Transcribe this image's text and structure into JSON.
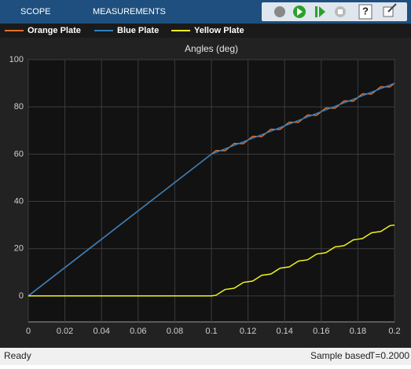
{
  "toolbar": {
    "tabs": [
      "SCOPE",
      "MEASUREMENTS"
    ],
    "help": "?"
  },
  "status_bar": {
    "state": "Ready",
    "mode": "Sample based",
    "time": "T=0.2000"
  },
  "chart_data": {
    "type": "line",
    "title": "Angles (deg)",
    "x": [
      0,
      0.05,
      0.1,
      0.1025,
      0.105,
      0.1075,
      0.11,
      0.1125,
      0.115,
      0.1175,
      0.12,
      0.1225,
      0.125,
      0.1275,
      0.13,
      0.1325,
      0.135,
      0.1375,
      0.14,
      0.1425,
      0.145,
      0.1475,
      0.15,
      0.1525,
      0.155,
      0.1575,
      0.16,
      0.1625,
      0.165,
      0.1675,
      0.17,
      0.1725,
      0.175,
      0.1775,
      0.18,
      0.1825,
      0.185,
      0.1875,
      0.19,
      0.1925,
      0.195,
      0.1975,
      0.2
    ],
    "series": [
      {
        "name": "Orange Plate",
        "color": "#e0702a",
        "values": [
          0,
          30,
          60,
          61.55,
          61.5,
          61.45,
          63,
          64.55,
          64.5,
          64.45,
          66,
          67.55,
          67.5,
          67.45,
          69,
          70.55,
          70.5,
          70.45,
          72,
          73.55,
          73.5,
          73.45,
          75,
          76.55,
          76.5,
          76.45,
          78,
          79.55,
          79.5,
          79.45,
          81,
          82.55,
          82.5,
          82.45,
          84,
          85.55,
          85.5,
          85.45,
          87,
          88.55,
          88.5,
          88.45,
          90
        ]
      },
      {
        "name": "Blue Plate",
        "color": "#2f7fc1",
        "values": [
          0,
          30,
          60,
          60.75,
          61.5,
          62.25,
          63,
          63.75,
          64.5,
          65.25,
          66,
          66.75,
          67.5,
          68.25,
          69,
          69.75,
          70.5,
          71.25,
          72,
          72.75,
          73.5,
          74.25,
          75,
          75.75,
          76.5,
          77.25,
          78,
          78.75,
          79.5,
          80.25,
          81,
          81.75,
          82.5,
          83.25,
          84,
          84.75,
          85.5,
          86.25,
          87,
          87.75,
          88.5,
          89.25,
          90
        ]
      },
      {
        "name": "Yellow Plate",
        "color": "#f2f21e",
        "values": [
          0,
          0,
          0,
          0.27,
          1.5,
          2.73,
          3,
          3.27,
          4.5,
          5.73,
          6,
          6.27,
          7.5,
          8.73,
          9,
          9.27,
          10.5,
          11.73,
          12,
          12.27,
          13.5,
          14.73,
          15,
          15.27,
          16.5,
          17.73,
          18,
          18.27,
          19.5,
          20.73,
          21,
          21.27,
          22.5,
          23.73,
          24,
          24.27,
          25.5,
          26.73,
          27,
          27.27,
          28.5,
          29.73,
          30
        ]
      }
    ],
    "xlim": [
      0,
      0.2
    ],
    "xticks": [
      0,
      0.02,
      0.04,
      0.06,
      0.08,
      0.1,
      0.12,
      0.14,
      0.16,
      0.18,
      0.2
    ],
    "ylim": [
      -11,
      100
    ],
    "yticks": [
      0,
      20,
      40,
      60,
      80,
      100
    ],
    "grid": true
  }
}
